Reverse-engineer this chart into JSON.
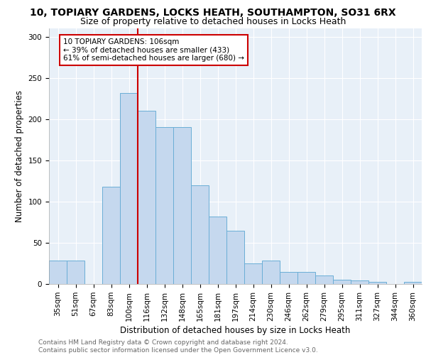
{
  "title_line1": "10, TOPIARY GARDENS, LOCKS HEATH, SOUTHAMPTON, SO31 6RX",
  "title_line2": "Size of property relative to detached houses in Locks Heath",
  "xlabel": "Distribution of detached houses by size in Locks Heath",
  "ylabel": "Number of detached properties",
  "categories": [
    "35sqm",
    "51sqm",
    "67sqm",
    "83sqm",
    "100sqm",
    "116sqm",
    "132sqm",
    "148sqm",
    "165sqm",
    "181sqm",
    "197sqm",
    "214sqm",
    "230sqm",
    "246sqm",
    "262sqm",
    "279sqm",
    "295sqm",
    "311sqm",
    "327sqm",
    "344sqm",
    "360sqm"
  ],
  "values": [
    28,
    28,
    0,
    118,
    232,
    210,
    190,
    190,
    120,
    82,
    65,
    25,
    28,
    15,
    15,
    10,
    5,
    4,
    3,
    0,
    3
  ],
  "bar_color": "#c5d8ee",
  "bar_edge_color": "#6aaed6",
  "background_color": "#e8f0f8",
  "grid_color": "#ffffff",
  "red_line_x": 4.5,
  "annotation_text": "10 TOPIARY GARDENS: 106sqm\n← 39% of detached houses are smaller (433)\n61% of semi-detached houses are larger (680) →",
  "annotation_box_color": "#cc0000",
  "ylim": [
    0,
    310
  ],
  "yticks": [
    0,
    50,
    100,
    150,
    200,
    250,
    300
  ],
  "footer_text": "Contains HM Land Registry data © Crown copyright and database right 2024.\nContains public sector information licensed under the Open Government Licence v3.0.",
  "title_fontsize": 10,
  "subtitle_fontsize": 9,
  "axis_label_fontsize": 8.5,
  "tick_fontsize": 7.5,
  "footer_fontsize": 6.5
}
